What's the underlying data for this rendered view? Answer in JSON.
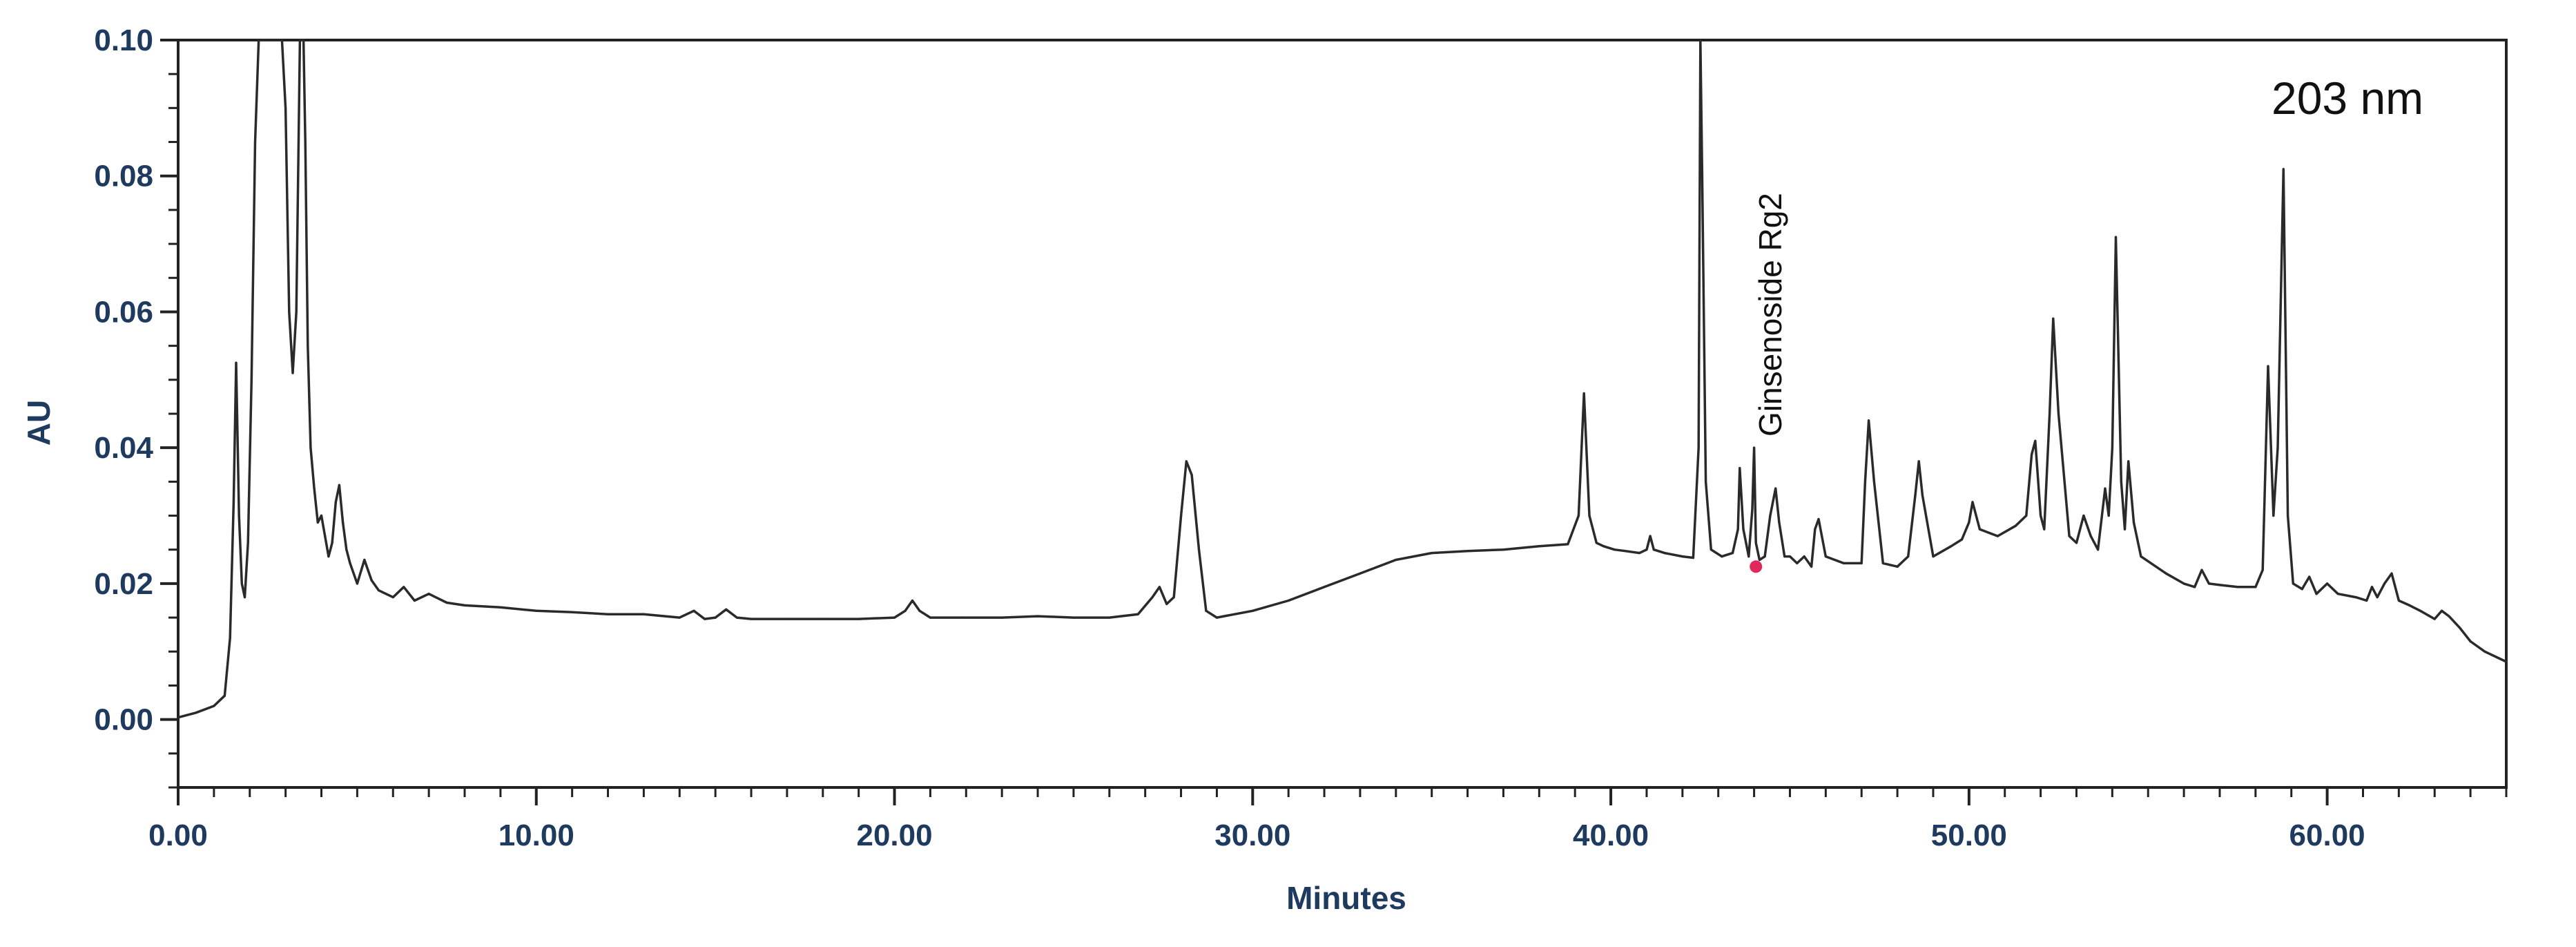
{
  "chart_data": {
    "type": "line",
    "title": "",
    "xlabel": "Minutes",
    "ylabel": "AU",
    "xlim": [
      0,
      65
    ],
    "ylim": [
      -0.01,
      0.1
    ],
    "x_ticks": [
      0,
      10,
      20,
      30,
      40,
      50,
      60
    ],
    "x_tick_labels": [
      "0.00",
      "10.00",
      "20.00",
      "30.00",
      "40.00",
      "50.00",
      "60.00"
    ],
    "y_ticks": [
      0,
      0.02,
      0.04,
      0.06,
      0.08,
      0.1
    ],
    "y_tick_labels": [
      "0.00",
      "0.02",
      "0.04",
      "0.06",
      "0.08",
      "0.10"
    ],
    "grid": false,
    "annotations": {
      "wavelength": "203  nm",
      "peak_label": "Ginsenoside Rg2"
    },
    "peak_marker": {
      "x": 44.05,
      "y": 0.0225
    },
    "series": [
      {
        "x": [
          0.0,
          0.5,
          1.0,
          1.3,
          1.45,
          1.55,
          1.62,
          1.7,
          1.78,
          1.86,
          1.95,
          2.05,
          2.15,
          2.25,
          2.35,
          2.45,
          2.6,
          2.75,
          2.9,
          3.0,
          3.1,
          3.2,
          3.3,
          3.4,
          3.45,
          3.5,
          3.55,
          3.62,
          3.7,
          3.8,
          3.9,
          4.0,
          4.1,
          4.2,
          4.3,
          4.4,
          4.5,
          4.6,
          4.7,
          4.8,
          4.9,
          5.0,
          5.2,
          5.4,
          5.6,
          5.8,
          6.0,
          6.3,
          6.6,
          7.0,
          7.5,
          8.0,
          9.0,
          10.0,
          11.0,
          12.0,
          13.0,
          14.0,
          14.4,
          14.7,
          15.0,
          15.3,
          15.6,
          16.0,
          17.0,
          18.0,
          19.0,
          20.0,
          20.3,
          20.5,
          20.7,
          21.0,
          22.0,
          23.0,
          24.0,
          25.0,
          26.0,
          26.8,
          27.2,
          27.4,
          27.6,
          27.8,
          28.0,
          28.15,
          28.3,
          28.5,
          28.7,
          29.0,
          30.0,
          31.0,
          32.0,
          33.0,
          34.0,
          35.0,
          36.0,
          37.0,
          38.0,
          38.8,
          39.1,
          39.25,
          39.4,
          39.6,
          39.8,
          40.1,
          40.4,
          40.8,
          41.0,
          41.1,
          41.2,
          41.5,
          42.0,
          42.3,
          42.45,
          42.5,
          42.55,
          42.65,
          42.8,
          43.1,
          43.4,
          43.55,
          43.6,
          43.7,
          43.85,
          43.95,
          44.0,
          44.05,
          44.15,
          44.3,
          44.45,
          44.6,
          44.7,
          44.85,
          45.0,
          45.2,
          45.4,
          45.6,
          45.7,
          45.8,
          46.0,
          46.5,
          47.0,
          47.1,
          47.2,
          47.35,
          47.6,
          48.0,
          48.3,
          48.5,
          48.6,
          48.7,
          49.0,
          49.5,
          49.8,
          50.0,
          50.1,
          50.3,
          50.8,
          51.3,
          51.6,
          51.75,
          51.85,
          52.0,
          52.1,
          52.25,
          52.35,
          52.5,
          52.8,
          53.0,
          53.2,
          53.4,
          53.6,
          53.8,
          53.9,
          54.0,
          54.1,
          54.25,
          54.35,
          54.45,
          54.6,
          54.8,
          55.5,
          56.0,
          56.3,
          56.5,
          56.7,
          57.0,
          57.5,
          58.0,
          58.2,
          58.35,
          58.5,
          58.62,
          58.78,
          58.9,
          59.05,
          59.3,
          59.5,
          59.7,
          60.0,
          60.3,
          60.8,
          61.1,
          61.25,
          61.4,
          61.6,
          61.8,
          62.0,
          62.3,
          62.6,
          63.0,
          63.2,
          63.4,
          63.7,
          64.0,
          64.4,
          65.0
        ],
        "y": [
          0.0003,
          0.001,
          0.002,
          0.0035,
          0.012,
          0.032,
          0.0525,
          0.03,
          0.02,
          0.018,
          0.026,
          0.05,
          0.085,
          0.105,
          0.105,
          0.105,
          0.105,
          0.105,
          0.105,
          0.09,
          0.06,
          0.051,
          0.06,
          0.105,
          0.105,
          0.105,
          0.085,
          0.055,
          0.04,
          0.034,
          0.029,
          0.03,
          0.027,
          0.024,
          0.026,
          0.032,
          0.0345,
          0.029,
          0.025,
          0.023,
          0.0215,
          0.02,
          0.0235,
          0.0205,
          0.019,
          0.0185,
          0.018,
          0.0195,
          0.0175,
          0.0185,
          0.0172,
          0.0168,
          0.0165,
          0.016,
          0.0158,
          0.0155,
          0.0155,
          0.015,
          0.016,
          0.0148,
          0.015,
          0.0162,
          0.015,
          0.0148,
          0.0148,
          0.0148,
          0.0148,
          0.015,
          0.016,
          0.0175,
          0.016,
          0.015,
          0.015,
          0.015,
          0.0152,
          0.015,
          0.015,
          0.0155,
          0.018,
          0.0195,
          0.017,
          0.018,
          0.03,
          0.038,
          0.036,
          0.025,
          0.016,
          0.015,
          0.016,
          0.0175,
          0.0195,
          0.0215,
          0.0235,
          0.0245,
          0.0248,
          0.025,
          0.0255,
          0.0258,
          0.03,
          0.048,
          0.03,
          0.026,
          0.0255,
          0.025,
          0.0248,
          0.0245,
          0.025,
          0.027,
          0.025,
          0.0245,
          0.024,
          0.0238,
          0.04,
          0.1,
          0.08,
          0.035,
          0.025,
          0.024,
          0.0245,
          0.028,
          0.037,
          0.028,
          0.024,
          0.031,
          0.04,
          0.026,
          0.0235,
          0.024,
          0.03,
          0.034,
          0.029,
          0.024,
          0.024,
          0.023,
          0.024,
          0.0225,
          0.028,
          0.0295,
          0.024,
          0.023,
          0.023,
          0.035,
          0.044,
          0.035,
          0.023,
          0.0225,
          0.024,
          0.033,
          0.038,
          0.033,
          0.024,
          0.0255,
          0.0265,
          0.029,
          0.032,
          0.028,
          0.027,
          0.0285,
          0.03,
          0.039,
          0.041,
          0.03,
          0.028,
          0.045,
          0.059,
          0.045,
          0.027,
          0.026,
          0.03,
          0.027,
          0.025,
          0.034,
          0.03,
          0.04,
          0.071,
          0.035,
          0.028,
          0.038,
          0.029,
          0.024,
          0.0215,
          0.02,
          0.0195,
          0.022,
          0.02,
          0.0198,
          0.0195,
          0.0195,
          0.022,
          0.052,
          0.03,
          0.04,
          0.081,
          0.03,
          0.02,
          0.0192,
          0.021,
          0.0185,
          0.02,
          0.0185,
          0.018,
          0.0175,
          0.0195,
          0.018,
          0.02,
          0.0215,
          0.0175,
          0.0168,
          0.016,
          0.0148,
          0.016,
          0.0152,
          0.0135,
          0.0115,
          0.01,
          0.0085
        ]
      }
    ]
  }
}
